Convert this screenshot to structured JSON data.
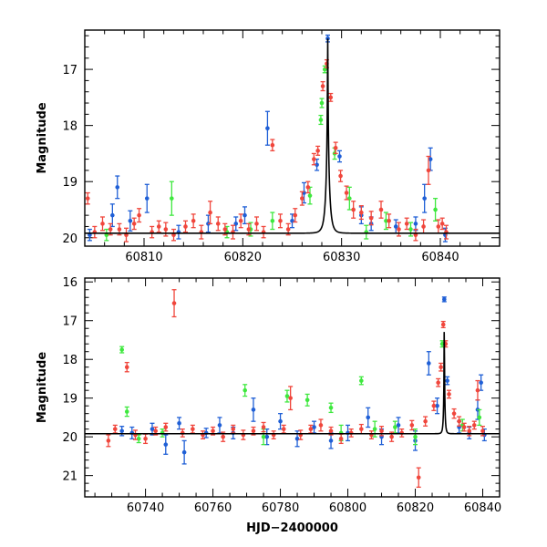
{
  "chart_data": [
    {
      "type": "scatter",
      "title": "",
      "xlabel": "",
      "ylabel": "Magnitude",
      "xlim": [
        60804,
        60846
      ],
      "ylim": [
        20.15,
        16.3
      ],
      "y_inverted": true,
      "xticks": [
        60810,
        60820,
        60830,
        60840
      ],
      "yticks": [
        17,
        18,
        19,
        20
      ],
      "model_curve": {
        "t0": 60828.6,
        "base": 19.92,
        "peak": 16.45,
        "tE": 0.37,
        "color": "#000000"
      },
      "series": [
        {
          "color": "#1f5fd6",
          "points": [
            [
              60804.5,
              19.95,
              0.1
            ],
            [
              60806.8,
              19.6,
              0.2
            ],
            [
              60807.3,
              19.1,
              0.2
            ],
            [
              60808.6,
              19.7,
              0.18
            ],
            [
              60810.3,
              19.3,
              0.25
            ],
            [
              60813.5,
              19.9,
              0.12
            ],
            [
              60816.5,
              19.75,
              0.15
            ],
            [
              60819.3,
              19.75,
              0.12
            ],
            [
              60820.2,
              19.6,
              0.15
            ],
            [
              60822.5,
              18.05,
              0.3
            ],
            [
              60825.0,
              19.7,
              0.12
            ],
            [
              60826.2,
              19.2,
              0.18
            ],
            [
              60827.5,
              18.7,
              0.1
            ],
            [
              60828.6,
              16.45,
              0.06
            ],
            [
              60829.8,
              18.55,
              0.1
            ],
            [
              60832.0,
              19.6,
              0.15
            ],
            [
              60833.0,
              19.75,
              0.12
            ],
            [
              60835.5,
              19.8,
              0.12
            ],
            [
              60837.5,
              19.75,
              0.12
            ],
            [
              60838.4,
              19.3,
              0.25
            ],
            [
              60839.0,
              18.6,
              0.2
            ],
            [
              60840.5,
              19.95,
              0.12
            ]
          ]
        },
        {
          "color": "#3ee83e",
          "points": [
            [
              60806.2,
              19.95,
              0.1
            ],
            [
              60812.8,
              19.3,
              0.3
            ],
            [
              60818.4,
              19.9,
              0.1
            ],
            [
              60820.8,
              19.85,
              0.12
            ],
            [
              60823.0,
              19.7,
              0.15
            ],
            [
              60826.8,
              19.25,
              0.15
            ],
            [
              60827.9,
              17.9,
              0.08
            ],
            [
              60828.0,
              17.6,
              0.08
            ],
            [
              60828.3,
              17.0,
              0.06
            ],
            [
              60829.3,
              18.5,
              0.1
            ],
            [
              60830.8,
              19.3,
              0.2
            ],
            [
              60832.5,
              19.9,
              0.12
            ],
            [
              60834.5,
              19.7,
              0.15
            ],
            [
              60837.0,
              19.85,
              0.12
            ],
            [
              60839.5,
              19.5,
              0.2
            ]
          ]
        },
        {
          "color": "#f0463c",
          "points": [
            [
              60804.3,
              19.3,
              0.1
            ],
            [
              60805.0,
              19.9,
              0.1
            ],
            [
              60805.8,
              19.75,
              0.12
            ],
            [
              60806.6,
              19.85,
              0.1
            ],
            [
              60807.5,
              19.85,
              0.1
            ],
            [
              60808.2,
              19.95,
              0.12
            ],
            [
              60809.0,
              19.75,
              0.1
            ],
            [
              60809.5,
              19.6,
              0.12
            ],
            [
              60810.8,
              19.9,
              0.1
            ],
            [
              60811.5,
              19.8,
              0.1
            ],
            [
              60812.2,
              19.85,
              0.12
            ],
            [
              60813.0,
              19.95,
              0.1
            ],
            [
              60814.2,
              19.8,
              0.1
            ],
            [
              60815.0,
              19.7,
              0.12
            ],
            [
              60815.8,
              19.9,
              0.12
            ],
            [
              60816.7,
              19.55,
              0.2
            ],
            [
              60817.5,
              19.75,
              0.12
            ],
            [
              60818.2,
              19.85,
              0.1
            ],
            [
              60819.0,
              19.9,
              0.12
            ],
            [
              60819.8,
              19.7,
              0.12
            ],
            [
              60820.6,
              19.85,
              0.1
            ],
            [
              60821.4,
              19.75,
              0.12
            ],
            [
              60822.1,
              19.9,
              0.1
            ],
            [
              60823.0,
              18.35,
              0.1
            ],
            [
              60823.8,
              19.7,
              0.12
            ],
            [
              60824.6,
              19.85,
              0.1
            ],
            [
              60825.3,
              19.6,
              0.12
            ],
            [
              60826.0,
              19.3,
              0.12
            ],
            [
              60826.6,
              19.1,
              0.1
            ],
            [
              60827.2,
              18.6,
              0.1
            ],
            [
              60827.6,
              18.45,
              0.08
            ],
            [
              60828.1,
              17.3,
              0.08
            ],
            [
              60828.5,
              16.9,
              0.07
            ],
            [
              60828.9,
              17.5,
              0.07
            ],
            [
              60829.4,
              18.4,
              0.1
            ],
            [
              60829.9,
              18.9,
              0.1
            ],
            [
              60830.5,
              19.2,
              0.12
            ],
            [
              60831.2,
              19.5,
              0.15
            ],
            [
              60832.0,
              19.55,
              0.12
            ],
            [
              60833.0,
              19.65,
              0.12
            ],
            [
              60834.0,
              19.5,
              0.15
            ],
            [
              60834.8,
              19.7,
              0.12
            ],
            [
              60835.8,
              19.85,
              0.12
            ],
            [
              60836.6,
              19.75,
              0.1
            ],
            [
              60837.5,
              19.95,
              0.1
            ],
            [
              60838.3,
              19.8,
              0.12
            ],
            [
              60838.8,
              18.8,
              0.25
            ],
            [
              60839.8,
              19.8,
              0.12
            ],
            [
              60840.2,
              19.75,
              0.1
            ],
            [
              60840.6,
              19.9,
              0.12
            ]
          ]
        }
      ]
    },
    {
      "type": "scatter",
      "title": "",
      "xlabel": "HJD−2400000",
      "ylabel": "Magnitude",
      "xlim": [
        60722,
        60845
      ],
      "ylim": [
        21.55,
        15.9
      ],
      "y_inverted": true,
      "xticks": [
        60740,
        60760,
        60780,
        60800,
        60820,
        60840
      ],
      "yticks": [
        16,
        17,
        18,
        19,
        20,
        21
      ],
      "model_curve": {
        "t0": 60828.6,
        "base": 19.92,
        "peak": 16.45,
        "tE": 0.37,
        "color": "#000000"
      },
      "series": [
        {
          "color": "#1f5fd6",
          "points": [
            [
              60733.0,
              19.85,
              0.12
            ],
            [
              60736.0,
              19.9,
              0.15
            ],
            [
              60742.0,
              19.8,
              0.15
            ],
            [
              60746.0,
              20.2,
              0.25
            ],
            [
              60750.0,
              19.65,
              0.15
            ],
            [
              60751.5,
              20.4,
              0.3
            ],
            [
              60758.0,
              19.9,
              0.12
            ],
            [
              60762.0,
              19.7,
              0.2
            ],
            [
              60766.0,
              19.9,
              0.15
            ],
            [
              60772.0,
              19.3,
              0.3
            ],
            [
              60776.0,
              20.0,
              0.2
            ],
            [
              60780.0,
              19.6,
              0.2
            ],
            [
              60785.0,
              20.05,
              0.2
            ],
            [
              60790.0,
              19.75,
              0.15
            ],
            [
              60795.0,
              20.1,
              0.2
            ],
            [
              60800.0,
              19.9,
              0.2
            ],
            [
              60806.0,
              19.5,
              0.25
            ],
            [
              60810.0,
              20.0,
              0.2
            ],
            [
              60815.0,
              19.7,
              0.2
            ],
            [
              60820.0,
              20.1,
              0.25
            ],
            [
              60824.0,
              18.1,
              0.3
            ],
            [
              60826.5,
              19.2,
              0.2
            ],
            [
              60828.6,
              16.45,
              0.06
            ],
            [
              60829.5,
              18.55,
              0.1
            ],
            [
              60833.0,
              19.75,
              0.15
            ],
            [
              60836.0,
              19.9,
              0.15
            ],
            [
              60838.5,
              19.3,
              0.25
            ],
            [
              60839.5,
              18.6,
              0.2
            ],
            [
              60840.5,
              19.95,
              0.15
            ]
          ]
        },
        {
          "color": "#3ee83e",
          "points": [
            [
              60733.0,
              17.75,
              0.08
            ],
            [
              60734.5,
              19.35,
              0.12
            ],
            [
              60738.0,
              20.05,
              0.1
            ],
            [
              60745.0,
              19.9,
              0.1
            ],
            [
              60769.5,
              18.8,
              0.15
            ],
            [
              60775.0,
              20.0,
              0.2
            ],
            [
              60782.0,
              18.95,
              0.15
            ],
            [
              60788.0,
              19.05,
              0.15
            ],
            [
              60795.0,
              19.25,
              0.12
            ],
            [
              60798.0,
              19.9,
              0.2
            ],
            [
              60804.0,
              18.55,
              0.1
            ],
            [
              60808.0,
              19.8,
              0.2
            ],
            [
              60814.0,
              19.75,
              0.15
            ],
            [
              60820.0,
              20.0,
              0.2
            ],
            [
              60828.0,
              17.6,
              0.08
            ],
            [
              60834.0,
              19.7,
              0.15
            ],
            [
              60839.0,
              19.5,
              0.2
            ]
          ]
        },
        {
          "color": "#f0463c",
          "points": [
            [
              60729.0,
              20.1,
              0.15
            ],
            [
              60731.0,
              19.8,
              0.1
            ],
            [
              60734.5,
              18.2,
              0.12
            ],
            [
              60737.0,
              19.95,
              0.12
            ],
            [
              60740.0,
              20.05,
              0.12
            ],
            [
              60743.0,
              19.85,
              0.1
            ],
            [
              60746.0,
              19.75,
              0.1
            ],
            [
              60748.5,
              16.55,
              0.35
            ],
            [
              60751.0,
              19.9,
              0.1
            ],
            [
              60754.0,
              19.8,
              0.1
            ],
            [
              60757.0,
              19.95,
              0.1
            ],
            [
              60760.0,
              19.85,
              0.1
            ],
            [
              60763.0,
              20.0,
              0.12
            ],
            [
              60766.0,
              19.8,
              0.1
            ],
            [
              60769.0,
              19.95,
              0.12
            ],
            [
              60772.0,
              19.85,
              0.1
            ],
            [
              60775.0,
              19.75,
              0.12
            ],
            [
              60778.0,
              19.95,
              0.1
            ],
            [
              60781.0,
              19.8,
              0.1
            ],
            [
              60783.0,
              19.0,
              0.3
            ],
            [
              60786.0,
              19.95,
              0.12
            ],
            [
              60789.0,
              19.8,
              0.1
            ],
            [
              60792.0,
              19.7,
              0.15
            ],
            [
              60795.0,
              19.85,
              0.1
            ],
            [
              60798.0,
              20.05,
              0.12
            ],
            [
              60801.0,
              19.9,
              0.1
            ],
            [
              60804.0,
              19.8,
              0.12
            ],
            [
              60807.0,
              19.95,
              0.1
            ],
            [
              60810.0,
              19.85,
              0.12
            ],
            [
              60813.0,
              20.0,
              0.12
            ],
            [
              60816.0,
              19.9,
              0.1
            ],
            [
              60819.0,
              19.7,
              0.12
            ],
            [
              60821.0,
              21.05,
              0.25
            ],
            [
              60823.0,
              19.6,
              0.12
            ],
            [
              60825.5,
              19.2,
              0.12
            ],
            [
              60826.8,
              18.6,
              0.1
            ],
            [
              60827.6,
              18.2,
              0.1
            ],
            [
              60828.3,
              17.1,
              0.08
            ],
            [
              60829.0,
              17.6,
              0.08
            ],
            [
              60830.0,
              18.9,
              0.1
            ],
            [
              60831.5,
              19.4,
              0.12
            ],
            [
              60833.0,
              19.6,
              0.12
            ],
            [
              60834.5,
              19.75,
              0.1
            ],
            [
              60836.0,
              19.85,
              0.12
            ],
            [
              60837.5,
              19.7,
              0.1
            ],
            [
              60838.5,
              18.8,
              0.25
            ],
            [
              60840.0,
              19.85,
              0.12
            ]
          ]
        }
      ]
    }
  ]
}
